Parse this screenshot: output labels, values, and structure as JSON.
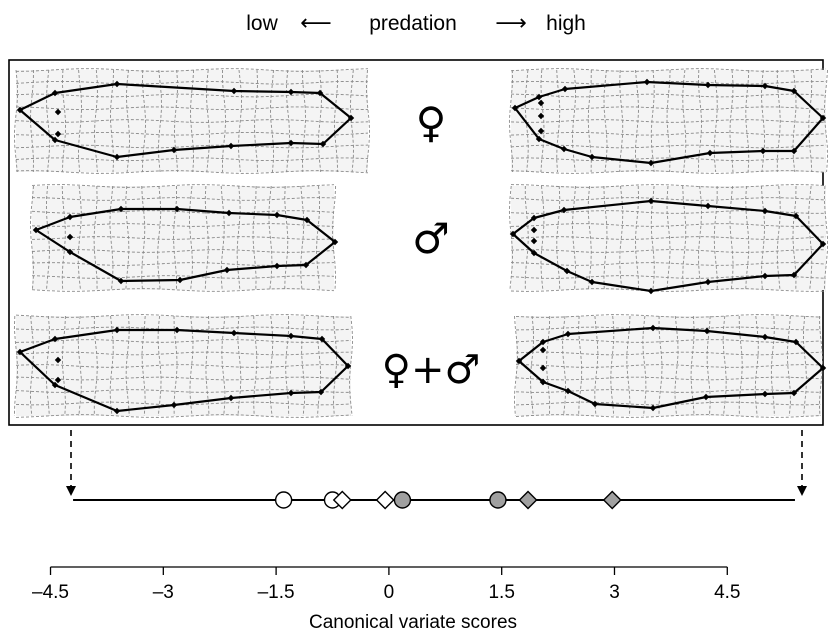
{
  "header": {
    "low_label": "low",
    "left_arrow": "⟵",
    "middle_label": "predation",
    "right_arrow": "⟶",
    "high_label": "high"
  },
  "rows": [
    {
      "symbol": "♀"
    },
    {
      "symbol": "♂"
    },
    {
      "symbol": "♀+♂"
    }
  ],
  "chart_data": {
    "type": "scatter",
    "xlabel": "Canonical variate scores",
    "xlim": [
      -4.6,
      5.6
    ],
    "ticks": [
      -4.5,
      -3,
      -1.5,
      0,
      1.5,
      3,
      4.5
    ],
    "tick_labels": [
      "–4.5",
      "–3",
      "–1.5",
      "0",
      "1.5",
      "3",
      "4.5"
    ],
    "range_line": [
      -4.2,
      5.4
    ],
    "series": [
      {
        "marker": "circle",
        "fill": "#ffffff",
        "values": [
          -1.4,
          -0.75
        ]
      },
      {
        "marker": "diamond",
        "fill": "#ffffff",
        "values": [
          -0.62,
          -0.05
        ]
      },
      {
        "marker": "circle",
        "fill": "#a0a0a0",
        "values": [
          0.18,
          1.45
        ]
      },
      {
        "marker": "diamond",
        "fill": "#a0a0a0",
        "values": [
          1.85,
          2.97
        ]
      }
    ]
  }
}
